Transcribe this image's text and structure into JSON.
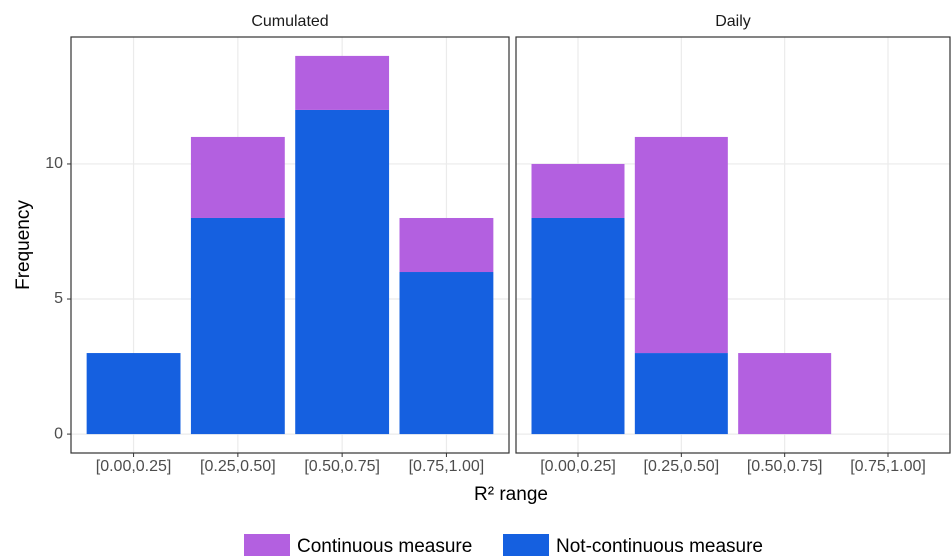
{
  "chart_data": {
    "type": "bar",
    "stacked": true,
    "facets": [
      "Cumulated",
      "Daily"
    ],
    "xlabel": "R² range",
    "ylabel": "Frequency",
    "categories": [
      "[0.00,0.25]",
      "[0.25,0.50]",
      "[0.50,0.75]",
      "[0.75,1.00]"
    ],
    "series": [
      {
        "name": "Continuous measure",
        "color": "#b360e0",
        "values": [
          [
            0,
            3,
            2,
            2
          ],
          [
            2,
            8,
            3,
            0
          ]
        ]
      },
      {
        "name": "Not-continuous measure",
        "color": "#1560e0",
        "values": [
          [
            3,
            8,
            12,
            6
          ],
          [
            8,
            3,
            0,
            0
          ]
        ]
      }
    ],
    "ylim": [
      -0.7,
      14.7
    ],
    "yticks": [
      0,
      5,
      10
    ],
    "grid": true,
    "legend": "bottom"
  }
}
